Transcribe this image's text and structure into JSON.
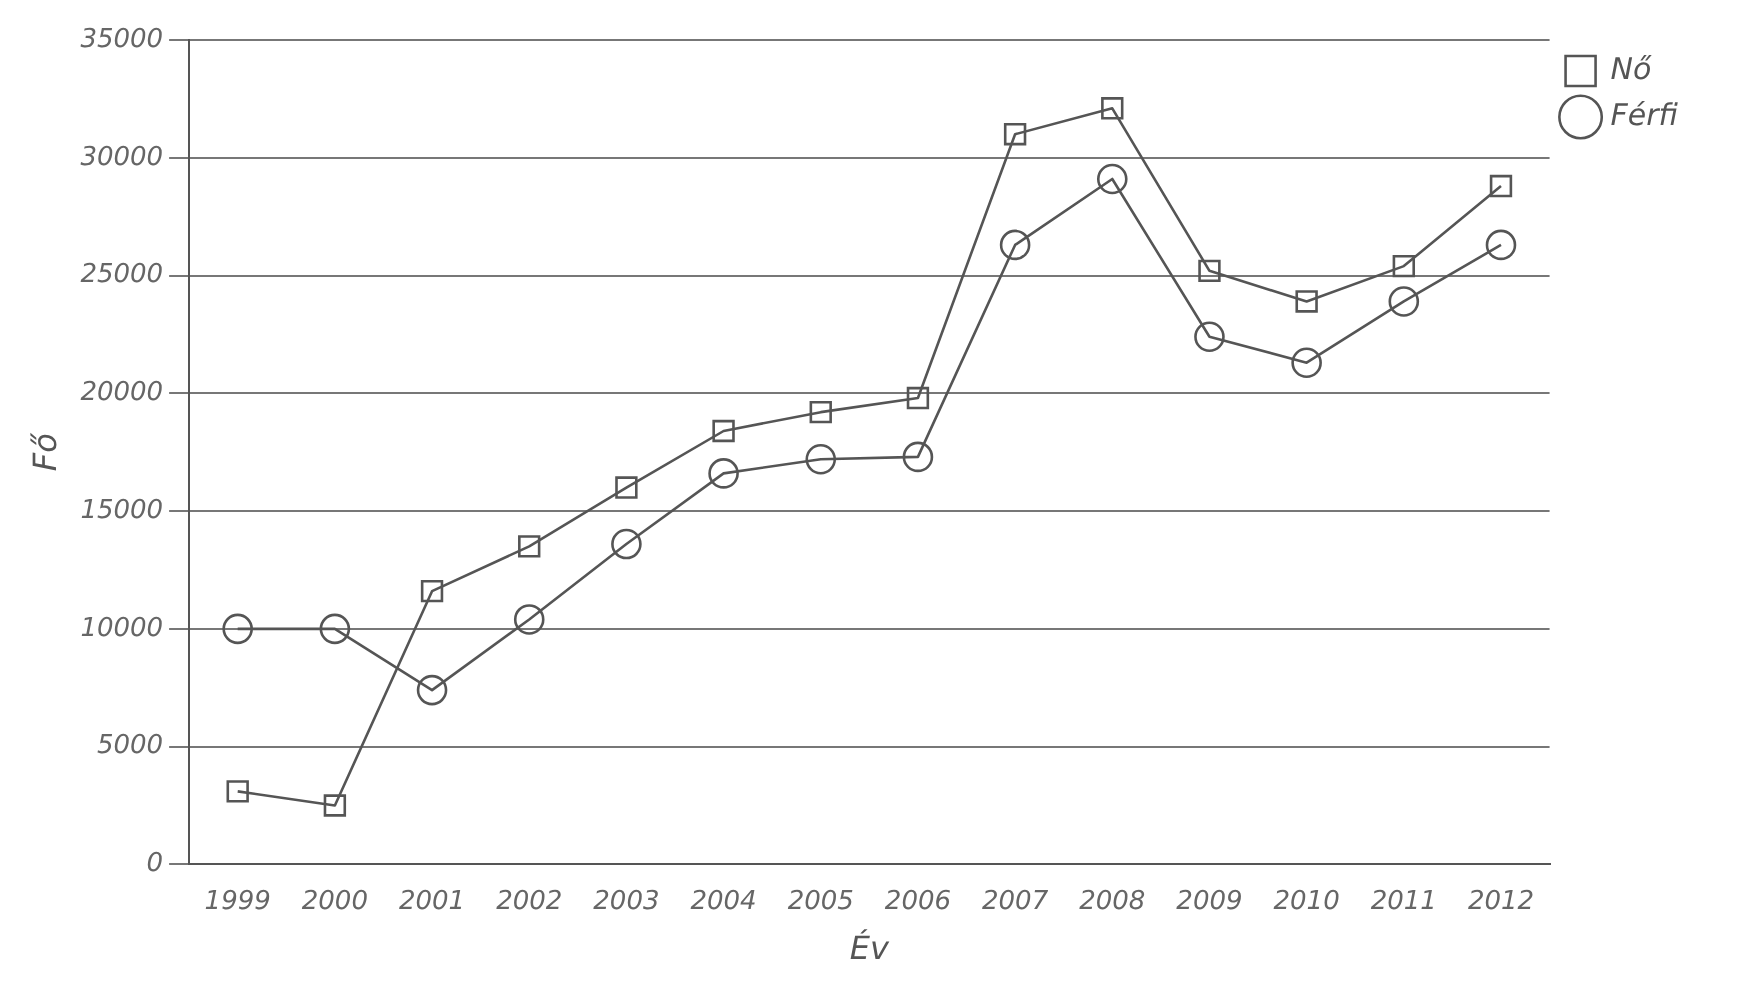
{
  "chart_data": {
    "type": "line",
    "xlabel": "Év",
    "ylabel": "Fő",
    "categories": [
      "1999",
      "2000",
      "2001",
      "2002",
      "2003",
      "2004",
      "2005",
      "2006",
      "2007",
      "2008",
      "2009",
      "2010",
      "2011",
      "2012"
    ],
    "series": [
      {
        "name": "Nő",
        "color": "#555555",
        "marker": "square",
        "values": [
          3100,
          2500,
          11600,
          13500,
          16000,
          18400,
          19200,
          19800,
          31000,
          32100,
          25200,
          23900,
          25400,
          28800
        ]
      },
      {
        "name": "Férfi",
        "color": "#555555",
        "marker": "circle",
        "values": [
          10000,
          10000,
          7400,
          10400,
          13600,
          16600,
          17200,
          17300,
          26300,
          29100,
          22400,
          21300,
          23900,
          26300
        ]
      }
    ],
    "ylim": [
      0,
      35000
    ],
    "yticks": [
      0,
      5000,
      10000,
      15000,
      20000,
      25000,
      30000,
      35000
    ],
    "grid": "y",
    "legend": "top right",
    "line_style": "solid"
  }
}
